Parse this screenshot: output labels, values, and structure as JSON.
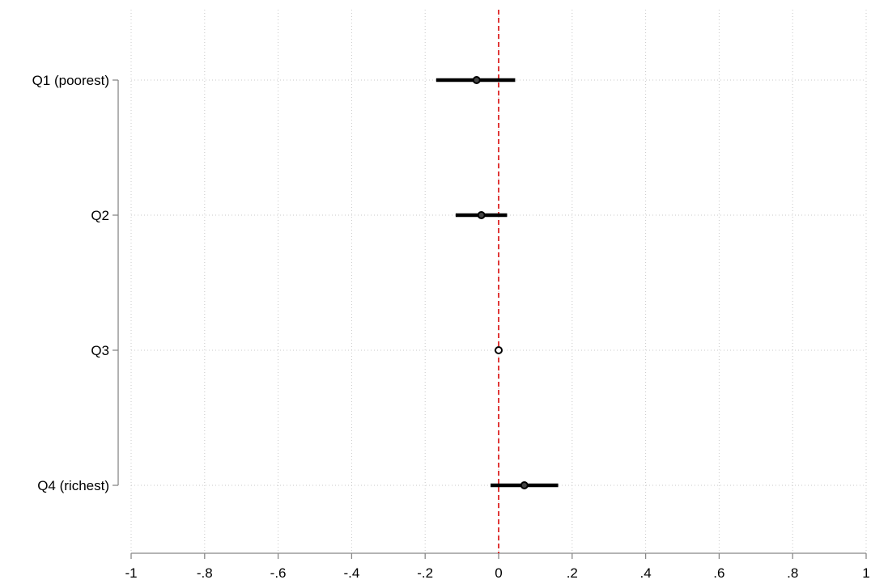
{
  "chart_data": {
    "type": "scatter",
    "orientation": "horizontal",
    "title": "",
    "xlabel": "",
    "ylabel": "",
    "xlim": [
      -1,
      1
    ],
    "x_ticks": [
      -1,
      -0.8,
      -0.6,
      -0.4,
      -0.2,
      0,
      0.2,
      0.4,
      0.6,
      0.8,
      1
    ],
    "x_tick_labels": [
      "-1",
      "-.8",
      "-.6",
      "-.4",
      "-.2",
      "0",
      ".2",
      ".4",
      ".6",
      ".8",
      "1"
    ],
    "grid": true,
    "reference_line": {
      "x": 0,
      "color": "#dd2222",
      "style": "dashed"
    },
    "categories": [
      "Q1 (poorest)",
      "Q2",
      "Q3",
      "Q4 (richest)"
    ],
    "points": [
      {
        "category": "Q1 (poorest)",
        "estimate": -0.06,
        "ci_low": -0.17,
        "ci_high": 0.045,
        "reference": false
      },
      {
        "category": "Q2",
        "estimate": -0.047,
        "ci_low": -0.117,
        "ci_high": 0.023,
        "reference": false
      },
      {
        "category": "Q3",
        "estimate": 0.0,
        "ci_low": 0.0,
        "ci_high": 0.0,
        "reference": true
      },
      {
        "category": "Q4 (richest)",
        "estimate": 0.07,
        "ci_low": -0.022,
        "ci_high": 0.162,
        "reference": false
      }
    ],
    "marker_color": "#000000"
  }
}
